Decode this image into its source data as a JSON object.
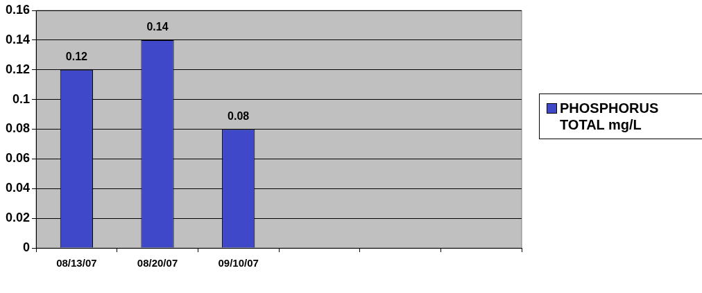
{
  "chart_data": {
    "type": "bar",
    "categories": [
      "08/13/07",
      "08/20/07",
      "09/10/07",
      null,
      null,
      null
    ],
    "series": [
      {
        "name": "PHOSPHORUS TOTAL mg/L",
        "color": "#3f48c8",
        "values": [
          0.12,
          0.14,
          0.08,
          null,
          null,
          null
        ]
      }
    ],
    "ylim": [
      0,
      0.16
    ],
    "yticks": [
      0,
      0.02,
      0.04,
      0.06,
      0.08,
      0.1,
      0.12,
      0.14,
      0.16
    ],
    "grid": "y",
    "legend": "right",
    "data_labels": true
  }
}
